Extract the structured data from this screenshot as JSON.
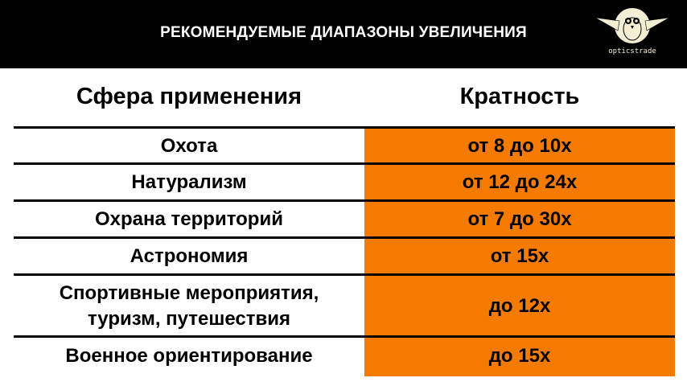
{
  "header": {
    "title": "РЕКОМЕНДУЕМЫЕ ДИАПАЗОНЫ УВЕЛИЧЕНИЯ",
    "logo_text": "opticstrade",
    "logo_icon": "owl-icon"
  },
  "colors": {
    "accent": "#f47b00",
    "header_bg": "#000000"
  },
  "table": {
    "columns": [
      "Сфера применения",
      "Кратность"
    ],
    "rows": [
      {
        "sphere": "Охота",
        "magnification": "от 8 до 10x"
      },
      {
        "sphere": "Натурализм",
        "magnification": "от 12 до 24x"
      },
      {
        "sphere": "Охрана территорий",
        "magnification": "от 7 до 30x"
      },
      {
        "sphere": "Астрономия",
        "magnification": "от 15x"
      },
      {
        "sphere": "Спортивные мероприятия,\nтуризм, путешествия",
        "magnification": "до 12x"
      },
      {
        "sphere": "Военное ориентирование",
        "magnification": "до 15x"
      }
    ]
  }
}
